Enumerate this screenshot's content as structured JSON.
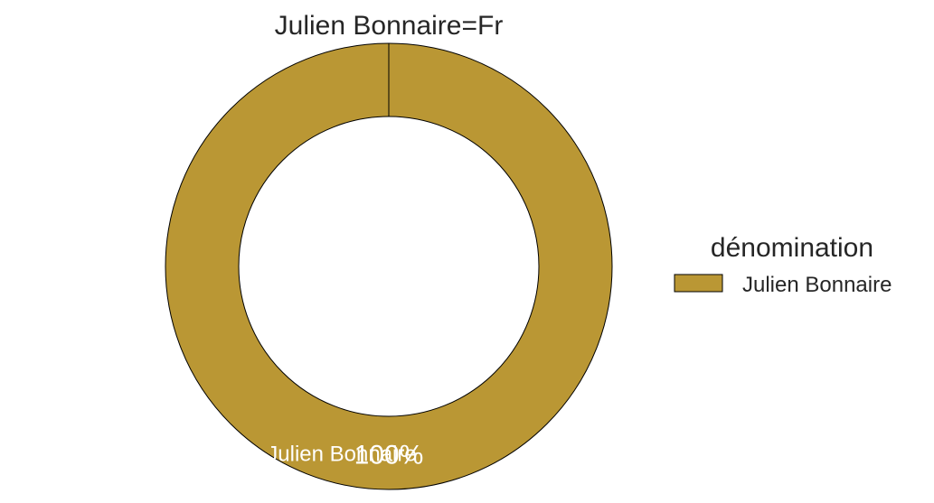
{
  "chart_data": {
    "type": "pie",
    "title": "Julien Bonnaire=Fr",
    "legend": {
      "title": "dénomination",
      "position": "right"
    },
    "slices": [
      {
        "label": "Julien Bonnaire",
        "value": 100,
        "percent_label": "100%",
        "color": "#BA9734"
      }
    ],
    "donut": true
  }
}
